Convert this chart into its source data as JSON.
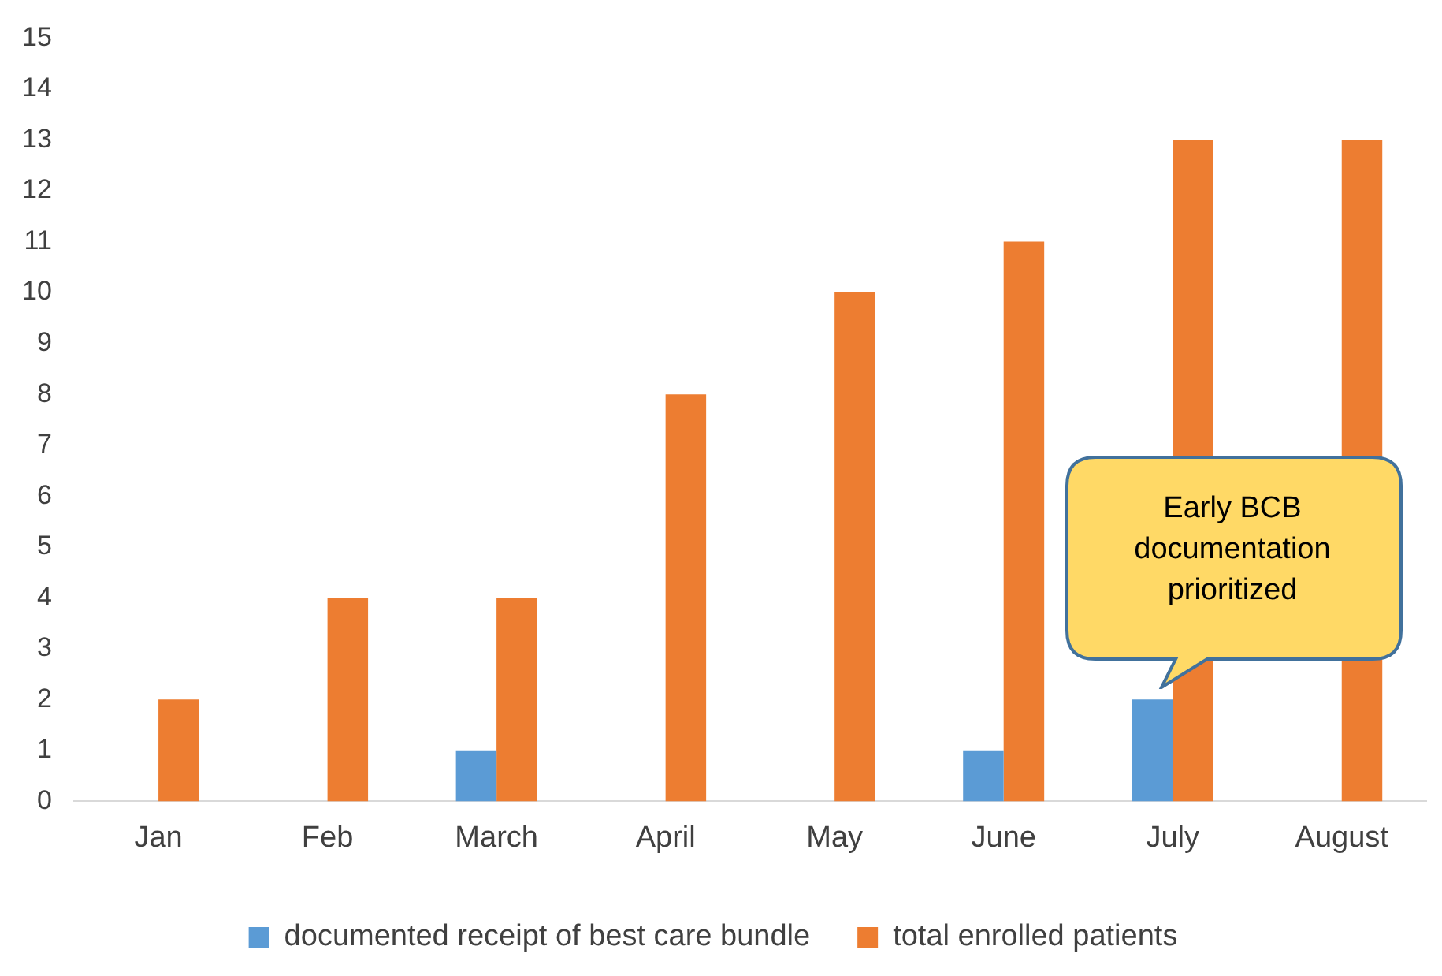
{
  "chart_data": {
    "type": "bar",
    "categories": [
      "Jan",
      "Feb",
      "March",
      "April",
      "May",
      "June",
      "July",
      "August"
    ],
    "series": [
      {
        "name": "documented receipt of best care bundle",
        "color": "#5b9bd5",
        "values": [
          0,
          0,
          1,
          0,
          0,
          1,
          2,
          0
        ]
      },
      {
        "name": "total enrolled patients",
        "color": "#ed7d31",
        "values": [
          2,
          4,
          4,
          8,
          10,
          11,
          13,
          13
        ]
      }
    ],
    "ylim": [
      0,
      15
    ],
    "yticks": [
      0,
      1,
      2,
      3,
      4,
      5,
      6,
      7,
      8,
      9,
      10,
      11,
      12,
      13,
      14,
      15
    ],
    "grid": false,
    "legend": "bottom",
    "annotations": [
      "Early BCB documentation prioritized"
    ]
  }
}
